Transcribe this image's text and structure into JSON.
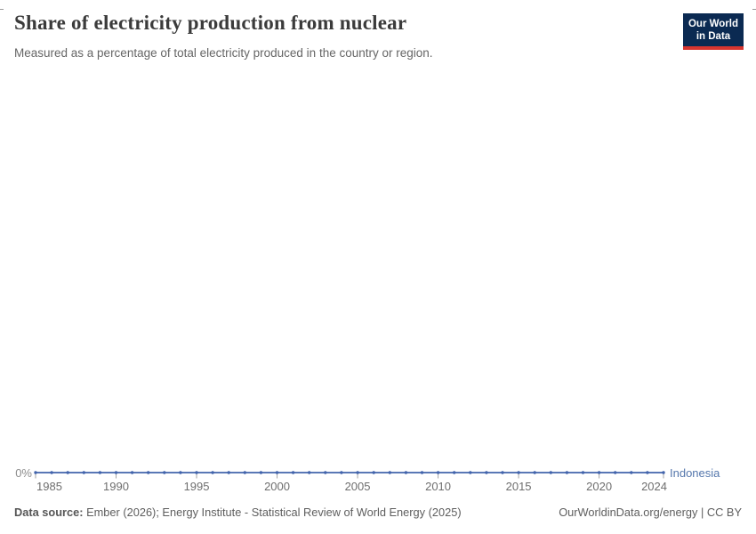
{
  "header": {
    "title": "Share of electricity production from nuclear",
    "subtitle": "Measured as a percentage of total electricity produced in the country or region.",
    "logo": {
      "line1": "Our World",
      "line2": "in Data"
    }
  },
  "chart_data": {
    "type": "line",
    "title": "Share of electricity production from nuclear",
    "x_range": [
      1985,
      2024
    ],
    "x_ticks": [
      1985,
      1990,
      1995,
      2000,
      2005,
      2010,
      2015,
      2020,
      2024
    ],
    "y_axis_labels": [
      "0%"
    ],
    "ylim": [
      0,
      0
    ],
    "grid": false,
    "legend_position": "end-of-line",
    "series": [
      {
        "name": "Indonesia",
        "color": "#4264ac",
        "label_color": "#5577ac",
        "x": [
          1985,
          1986,
          1987,
          1988,
          1989,
          1990,
          1991,
          1992,
          1993,
          1994,
          1995,
          1996,
          1997,
          1998,
          1999,
          2000,
          2001,
          2002,
          2003,
          2004,
          2005,
          2006,
          2007,
          2008,
          2009,
          2010,
          2011,
          2012,
          2013,
          2014,
          2015,
          2016,
          2017,
          2018,
          2019,
          2020,
          2021,
          2022,
          2023,
          2024
        ],
        "values": [
          0,
          0,
          0,
          0,
          0,
          0,
          0,
          0,
          0,
          0,
          0,
          0,
          0,
          0,
          0,
          0,
          0,
          0,
          0,
          0,
          0,
          0,
          0,
          0,
          0,
          0,
          0,
          0,
          0,
          0,
          0,
          0,
          0,
          0,
          0,
          0,
          0,
          0,
          0,
          0
        ]
      }
    ]
  },
  "colors": {
    "tick": "#a6a6a6",
    "tick_label": "#6e6e6e",
    "y_label": "#8c8c8c",
    "logo_bg": "#0b2a52",
    "logo_red": "#d8352f"
  },
  "footer": {
    "source_label": "Data source:",
    "source_text": " Ember (2026); Energy Institute - Statistical Review of World Energy (2025)",
    "right_text": "OurWorldinData.org/energy | CC BY"
  }
}
